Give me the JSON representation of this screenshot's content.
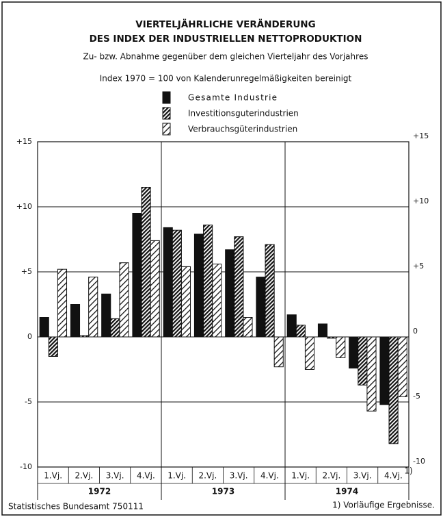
{
  "chart_data": {
    "type": "bar",
    "title_lines": [
      "VIERTELJÄHRLICHE VERÄNDERUNG",
      "DES INDEX DER INDUSTRIELLEN NETTOPRODUKTION"
    ],
    "subtitle": "Zu- bzw. Abnahme gegenüber dem gleichen Vierteljahr des Vorjahres",
    "note": "Index 1970 = 100 von Kalenderunregelmäßigkeiten bereinigt",
    "categories": [
      "1.Vj.",
      "2.Vj.",
      "3.Vj.",
      "4.Vj.",
      "1.Vj.",
      "2.Vj.",
      "3.Vj.",
      "4.Vj.",
      "1.Vj.",
      "2.Vj.",
      "3.Vj.",
      "4.Vj."
    ],
    "footnote_marker": "1)",
    "year_labels": [
      "1972",
      "1973",
      "1974"
    ],
    "series": [
      {
        "name": "Gesamte Industrie",
        "color": "#111111",
        "pattern": "solid",
        "values": [
          1.5,
          2.5,
          3.3,
          9.5,
          8.4,
          7.9,
          6.7,
          4.6,
          1.7,
          1.0,
          -2.4,
          -5.2
        ]
      },
      {
        "name": "Investitionsguterindustrien",
        "color": "#111111",
        "pattern": "hatch-dense",
        "values": [
          -1.5,
          0.1,
          1.4,
          11.5,
          8.2,
          8.6,
          7.7,
          7.1,
          0.9,
          -0.1,
          -3.7,
          -8.2
        ]
      },
      {
        "name": "Verbrauchsgüterindustrien",
        "color": "#111111",
        "pattern": "hatch-light",
        "values": [
          5.2,
          4.6,
          5.7,
          7.4,
          5.4,
          5.6,
          1.5,
          -2.3,
          -2.5,
          -1.6,
          -5.7,
          -4.6
        ]
      }
    ],
    "ylim": [
      -10,
      15
    ],
    "yticks": [
      {
        "value": 15,
        "label": "+15"
      },
      {
        "value": 10,
        "label": "+10"
      },
      {
        "value": 5,
        "label": "+5"
      },
      0,
      -5,
      -10
    ],
    "grid": true,
    "source": "Statistisches Bundesamt 750111",
    "footnote": "1) Vorläufige Ergebnisse."
  }
}
